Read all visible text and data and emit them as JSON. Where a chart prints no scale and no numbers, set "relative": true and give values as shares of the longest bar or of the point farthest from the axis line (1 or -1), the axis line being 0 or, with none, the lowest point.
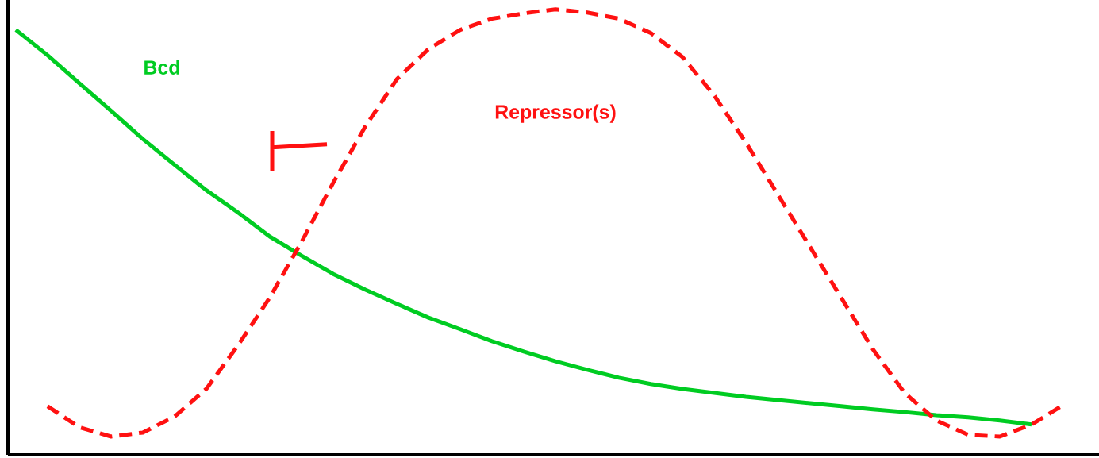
{
  "chart_data": {
    "type": "line",
    "relative": true,
    "categories": [
      null,
      null,
      null,
      null,
      null,
      null,
      null,
      null,
      null,
      null,
      null,
      null,
      null,
      null,
      null,
      null,
      null,
      null,
      null,
      null,
      null,
      null,
      null,
      null,
      null,
      null,
      null,
      null,
      null,
      null,
      null,
      null,
      null,
      null
    ],
    "series": [
      {
        "name": "Bcd",
        "color": "#00cc22",
        "line_style": "solid",
        "values": [
          0.954,
          0.897,
          0.834,
          0.772,
          0.709,
          0.651,
          0.594,
          0.544,
          0.49,
          0.447,
          0.406,
          0.371,
          0.339,
          0.308,
          0.282,
          0.255,
          0.232,
          0.21,
          0.191,
          0.173,
          0.159,
          0.148,
          0.139,
          0.13,
          0.123,
          0.116,
          0.109,
          0.102,
          0.096,
          0.089,
          0.084,
          0.077,
          0.068,
          null
        ]
      },
      {
        "name": "Repressor(s)",
        "color": "#ff1111",
        "line_style": "dashed",
        "values": [
          null,
          0.109,
          0.062,
          0.041,
          0.05,
          0.086,
          0.148,
          0.246,
          0.353,
          0.478,
          0.611,
          0.736,
          0.843,
          0.911,
          0.954,
          0.979,
          0.991,
          1.0,
          0.993,
          0.979,
          0.947,
          0.893,
          0.807,
          0.701,
          0.585,
          0.469,
          0.353,
          0.237,
          0.139,
          0.077,
          0.045,
          0.041,
          0.068,
          0.112
        ]
      }
    ]
  }
}
